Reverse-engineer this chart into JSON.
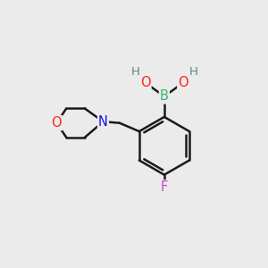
{
  "bg_color": "#ebebeb",
  "bond_color": "#1a1a1a",
  "bond_width": 1.8,
  "atom_colors": {
    "B": "#3cb371",
    "O": "#ff2222",
    "N": "#1111ee",
    "F": "#cc44cc",
    "H": "#558888",
    "C": "#1a1a1a"
  },
  "figsize": [
    3.0,
    3.0
  ],
  "dpi": 100
}
